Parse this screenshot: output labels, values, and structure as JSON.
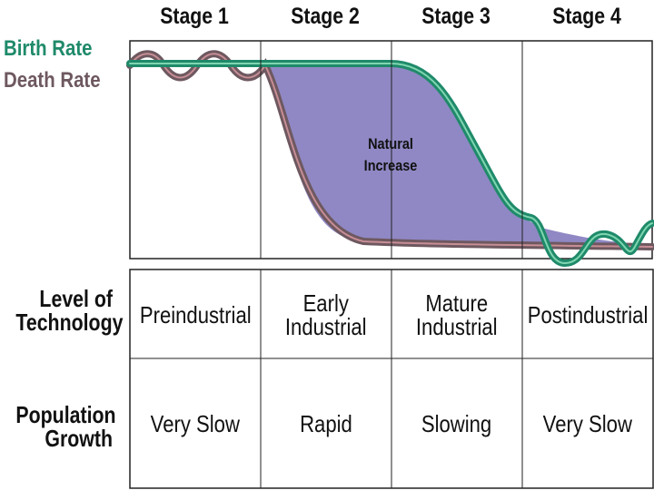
{
  "stages": [
    "Stage 1",
    "Stage 2",
    "Stage 3",
    "Stage 4"
  ],
  "legend": {
    "birth_rate": "Birth Rate",
    "death_rate": "Death Rate",
    "birth_color": "#1f8a6a",
    "death_color": "#6e5860"
  },
  "area_label": {
    "line1": "Natural",
    "line2": "Increase",
    "color": "#8f88c4"
  },
  "table": {
    "technology": {
      "label_line1": "Level of",
      "label_line2": "Technology",
      "cells": [
        {
          "line1": "Preindustrial",
          "line2": ""
        },
        {
          "line1": "Early",
          "line2": "Industrial"
        },
        {
          "line1": "Mature",
          "line2": "Industrial"
        },
        {
          "line1": "Postindustrial",
          "line2": ""
        }
      ]
    },
    "growth": {
      "label_line1": "Population",
      "label_line2": "Growth",
      "cells": [
        "Very Slow",
        "Rapid",
        "Slowing",
        "Very Slow"
      ]
    }
  }
}
